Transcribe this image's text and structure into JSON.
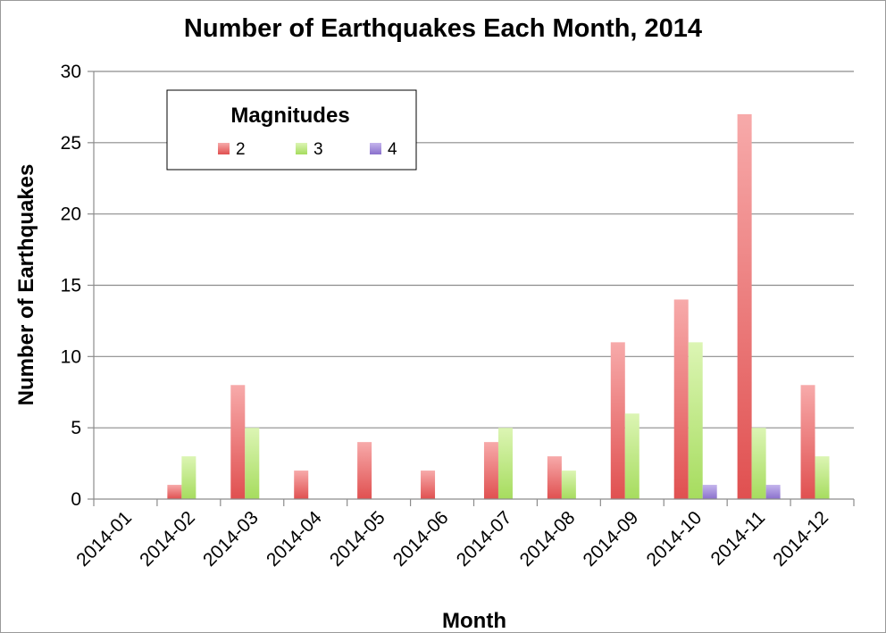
{
  "chart_data": {
    "type": "bar",
    "title": "Number of Earthquakes Each Month, 2014",
    "xlabel": "Month",
    "ylabel": "Number of Earthquakes",
    "ylim": [
      0,
      30
    ],
    "yticks": [
      0,
      5,
      10,
      15,
      20,
      25,
      30
    ],
    "grid": true,
    "legend": {
      "title": "Magnitudes",
      "position": "top-left"
    },
    "categories": [
      "2014-01",
      "2014-02",
      "2014-03",
      "2014-04",
      "2014-05",
      "2014-06",
      "2014-07",
      "2014-08",
      "2014-09",
      "2014-10",
      "2014-11",
      "2014-12"
    ],
    "series": [
      {
        "name": "2",
        "color": "#ee6b6b",
        "values": [
          0,
          1,
          8,
          2,
          4,
          2,
          4,
          3,
          11,
          14,
          27,
          8
        ]
      },
      {
        "name": "3",
        "color": "#b5e37a",
        "values": [
          0,
          3,
          5,
          0,
          0,
          0,
          5,
          2,
          6,
          11,
          5,
          3
        ]
      },
      {
        "name": "4",
        "color": "#a08ad8",
        "values": [
          0,
          0,
          0,
          0,
          0,
          0,
          0,
          0,
          0,
          1,
          1,
          0
        ]
      }
    ]
  }
}
